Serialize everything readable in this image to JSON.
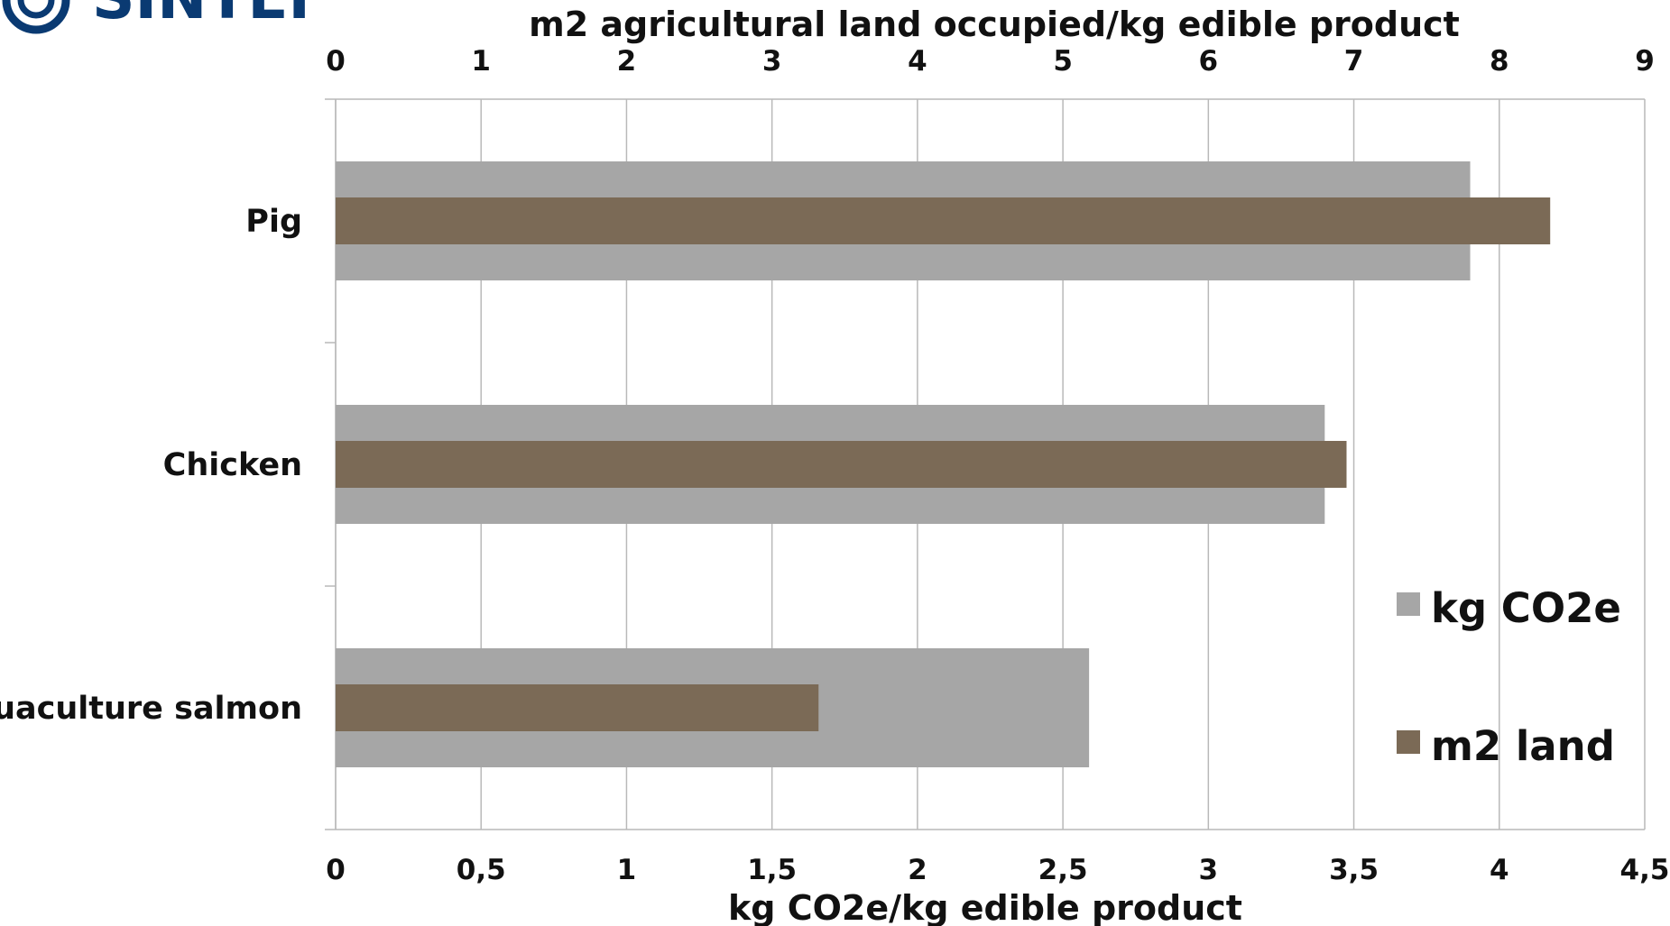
{
  "logo": {
    "text": "SINTEF",
    "color": "#0a3a72"
  },
  "chart_data": {
    "type": "bar",
    "orientation": "horizontal",
    "categories": [
      "Pig",
      "Chicken",
      "Aquaculture salmon"
    ],
    "series": [
      {
        "name": "kg CO2e",
        "axis": "bottom",
        "color": "#a6a6a6",
        "values": [
          3.9,
          3.4,
          2.59
        ]
      },
      {
        "name": "m2 land",
        "axis": "top",
        "color": "#7b6a56",
        "values": [
          8.35,
          6.95,
          3.32
        ]
      }
    ],
    "x_bottom": {
      "label": "kg CO2e/kg edible product",
      "range": [
        0,
        4.5
      ],
      "ticks": [
        "0",
        "0,5",
        "1",
        "1,5",
        "2",
        "2,5",
        "3",
        "3,5",
        "4",
        "4,5"
      ]
    },
    "x_top": {
      "label": "m2 agricultural land occupied/kg edible product",
      "range": [
        0,
        9
      ],
      "ticks": [
        "0",
        "1",
        "2",
        "3",
        "4",
        "5",
        "6",
        "7",
        "8",
        "9"
      ]
    },
    "grid": true,
    "legend": {
      "position": "bottom-right",
      "entries": [
        "kg CO2e",
        "m2 land"
      ]
    }
  }
}
